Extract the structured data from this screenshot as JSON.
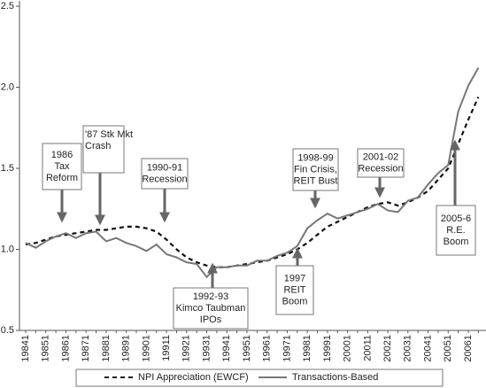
{
  "chart_data": {
    "type": "line",
    "categories": [
      "19841",
      null,
      "19851",
      null,
      "19861",
      null,
      "19871",
      null,
      "19881",
      null,
      "19891",
      null,
      "19901",
      null,
      "19911",
      null,
      "19921",
      null,
      "19931",
      null,
      "19941",
      null,
      "19951",
      null,
      "19961",
      null,
      "19971",
      null,
      "19981",
      null,
      "19991",
      null,
      "20001",
      null,
      "20011",
      null,
      "20021",
      null,
      "20031",
      null,
      "20041",
      null,
      "20051",
      null,
      "20061",
      null
    ],
    "series": [
      {
        "name": "NPI Appreciation (EWCF)",
        "color": "#111111",
        "dashed": true,
        "values": [
          1.03,
          1.04,
          1.06,
          1.08,
          1.09,
          1.1,
          1.11,
          1.12,
          1.12,
          1.13,
          1.14,
          1.14,
          1.13,
          1.11,
          1.06,
          1.0,
          0.95,
          0.92,
          0.9,
          0.89,
          0.89,
          0.9,
          0.91,
          0.92,
          0.93,
          0.95,
          0.97,
          1.0,
          1.04,
          1.09,
          1.14,
          1.17,
          1.2,
          1.23,
          1.26,
          1.28,
          1.29,
          1.27,
          1.29,
          1.32,
          1.36,
          1.43,
          1.5,
          1.65,
          1.8,
          1.94
        ]
      },
      {
        "name": "Transactions-Based",
        "color": "#777777",
        "dashed": false,
        "values": [
          1.04,
          1.01,
          1.05,
          1.08,
          1.1,
          1.07,
          1.1,
          1.11,
          1.05,
          1.07,
          1.04,
          1.02,
          0.99,
          1.03,
          0.97,
          0.95,
          0.92,
          0.91,
          0.83,
          0.89,
          0.89,
          0.9,
          0.9,
          0.93,
          0.93,
          0.96,
          0.98,
          1.02,
          1.13,
          1.18,
          1.22,
          1.19,
          1.21,
          1.23,
          1.25,
          1.28,
          1.24,
          1.23,
          1.3,
          1.32,
          1.4,
          1.47,
          1.52,
          1.85,
          2.01,
          2.12
        ]
      }
    ],
    "ylim": [
      0.5,
      2.5
    ],
    "yticks": [
      0.5,
      {
        "value": 1,
        "label": "1.0"
      },
      1.5,
      {
        "value": 2,
        "label": "2.0"
      },
      2.5
    ],
    "annotations": [
      {
        "lines": [
          "1986",
          "Tax",
          "Reform"
        ]
      },
      {
        "lines": [
          "'87 Stk Mkt",
          "Crash"
        ]
      },
      {
        "lines": [
          "1990-91",
          "Recession"
        ]
      },
      {
        "lines": [
          "1992-93",
          "Kimco Taubman",
          "IPOs"
        ]
      },
      {
        "lines": [
          "1997",
          "REIT",
          "Boom"
        ]
      },
      {
        "lines": [
          "1998-99",
          "Fin Crisis,",
          "REIT Bust"
        ]
      },
      {
        "lines": [
          "2001-02",
          "Recession"
        ]
      },
      {
        "lines": [
          "2005-6",
          "R.E.",
          "Boom"
        ]
      }
    ]
  }
}
